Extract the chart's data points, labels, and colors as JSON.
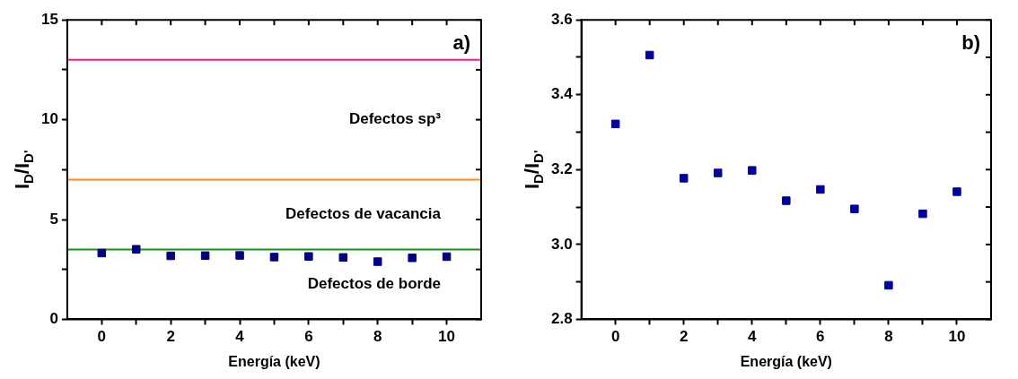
{
  "chart_data": [
    {
      "type": "scatter",
      "xlabel": "Energía (keV)",
      "ylabel": "I$_{D}$/I$_{D'}$",
      "marker": "square",
      "grid": false,
      "x": [
        0,
        1,
        2,
        3,
        4,
        5,
        6,
        7,
        8,
        9,
        10
      ],
      "series": [
        {
          "color": "#000080",
          "values": [
            3.32,
            3.51,
            3.18,
            3.19,
            3.2,
            3.12,
            3.15,
            3.1,
            2.89,
            3.08,
            3.14
          ]
        }
      ],
      "xlim": [
        -1,
        11
      ],
      "xticks": [
        0,
        {
          "value": 1,
          "label": null
        },
        2,
        {
          "value": 3,
          "label": null
        },
        4,
        {
          "value": 5,
          "label": null
        },
        6,
        {
          "value": 7,
          "label": null
        },
        8,
        {
          "value": 9,
          "label": null
        },
        10
      ],
      "ylim": [
        0,
        15
      ],
      "yticks": [
        0,
        {
          "value": 2.5,
          "label": null
        },
        5,
        {
          "value": 7.5,
          "label": null
        },
        10,
        {
          "value": 12.5,
          "label": null
        },
        15
      ],
      "ref_lines": [
        {
          "axis": "y",
          "value": 13,
          "color": "#ff1a8c"
        },
        {
          "axis": "y",
          "value": 7,
          "color": "#ff8c1a"
        },
        {
          "axis": "y",
          "value": 3.5,
          "color": "#1a8c1a"
        }
      ],
      "annotations": [
        "a)",
        "Defectos sp³",
        "Defectos de vacancia",
        "Defectos de borde"
      ]
    },
    {
      "type": "scatter",
      "xlabel": "Energía (keV)",
      "ylabel": "I$_{D}$/I$_{D'}$",
      "marker": "square",
      "grid": false,
      "x": [
        0,
        1,
        2,
        3,
        4,
        5,
        6,
        7,
        8,
        9,
        10
      ],
      "series": [
        {
          "color": "#0000a0",
          "values": [
            3.322,
            3.506,
            3.177,
            3.191,
            3.198,
            3.117,
            3.147,
            3.095,
            2.891,
            3.082,
            3.141
          ]
        }
      ],
      "xlim": [
        -1,
        11
      ],
      "xticks": [
        0,
        {
          "value": 1,
          "label": null
        },
        2,
        {
          "value": 3,
          "label": null
        },
        4,
        {
          "value": 5,
          "label": null
        },
        6,
        {
          "value": 7,
          "label": null
        },
        8,
        {
          "value": 9,
          "label": null
        },
        10
      ],
      "ylim": [
        2.8,
        3.6
      ],
      "yticks": [
        2.8,
        {
          "value": 2.9,
          "label": null
        },
        {
          "value": 3,
          "label": "3.0"
        },
        {
          "value": 3.1,
          "label": null
        },
        3.2,
        {
          "value": 3.3,
          "label": null
        },
        3.4,
        {
          "value": 3.5,
          "label": null
        },
        3.6
      ],
      "annotations": [
        "b)"
      ]
    }
  ]
}
